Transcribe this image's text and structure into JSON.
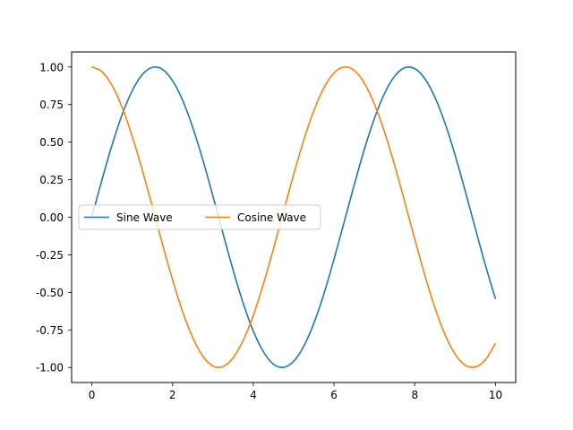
{
  "chart_data": {
    "type": "line",
    "title": "",
    "xlabel": "",
    "ylabel": "",
    "xlim": [
      -0.5,
      10.5
    ],
    "ylim": [
      -1.1,
      1.1
    ],
    "xticks": [
      0,
      2,
      4,
      6,
      8,
      10
    ],
    "xtick_labels": [
      "0",
      "2",
      "4",
      "6",
      "8",
      "10"
    ],
    "yticks": [
      1.0,
      0.75,
      0.5,
      0.25,
      0.0,
      -0.25,
      -0.5,
      -0.75,
      -1.0
    ],
    "ytick_labels": [
      "1.00",
      "0.75",
      "0.50",
      "0.25",
      "0.00",
      "-0.25",
      "-0.50",
      "-0.75",
      "-1.00"
    ],
    "grid": false,
    "legend": {
      "placement": "center-left",
      "columns": 2
    },
    "series": [
      {
        "name": "Sine Wave",
        "color": "#1f77b4",
        "x": [
          0.0,
          0.25,
          0.5,
          0.75,
          1.0,
          1.25,
          1.5,
          1.75,
          2.0,
          2.25,
          2.5,
          2.75,
          3.0,
          3.25,
          3.5,
          3.75,
          4.0,
          4.25,
          4.5,
          4.75,
          5.0,
          5.25,
          5.5,
          5.75,
          6.0,
          6.25,
          6.5,
          6.75,
          7.0,
          7.25,
          7.5,
          7.75,
          8.0,
          8.25,
          8.5,
          8.75,
          9.0,
          9.25,
          9.5,
          9.75,
          10.0
        ],
        "y": [
          0.0,
          0.247,
          0.479,
          0.682,
          0.841,
          0.949,
          0.997,
          0.984,
          0.909,
          0.778,
          0.598,
          0.382,
          0.141,
          -0.108,
          -0.351,
          -0.572,
          -0.757,
          -0.895,
          -0.978,
          -0.999,
          -0.959,
          -0.859,
          -0.706,
          -0.51,
          -0.279,
          -0.033,
          0.215,
          0.451,
          0.657,
          0.823,
          0.938,
          0.995,
          0.989,
          0.922,
          0.798,
          0.625,
          0.412,
          0.174,
          -0.075,
          -0.319,
          -0.544
        ]
      },
      {
        "name": "Cosine Wave",
        "color": "#ff7f0e",
        "x": [
          0.0,
          0.25,
          0.5,
          0.75,
          1.0,
          1.25,
          1.5,
          1.75,
          2.0,
          2.25,
          2.5,
          2.75,
          3.0,
          3.25,
          3.5,
          3.75,
          4.0,
          4.25,
          4.5,
          4.75,
          5.0,
          5.25,
          5.5,
          5.75,
          6.0,
          6.25,
          6.5,
          6.75,
          7.0,
          7.25,
          7.5,
          7.75,
          8.0,
          8.25,
          8.5,
          8.75,
          9.0,
          9.25,
          9.5,
          9.75,
          10.0
        ],
        "y": [
          1.0,
          0.969,
          0.878,
          0.732,
          0.54,
          0.315,
          0.071,
          -0.178,
          -0.416,
          -0.628,
          -0.801,
          -0.924,
          -0.99,
          -0.994,
          -0.936,
          -0.82,
          -0.654,
          -0.446,
          -0.211,
          0.037,
          0.284,
          0.512,
          0.709,
          0.861,
          0.96,
          0.999,
          0.977,
          0.893,
          0.754,
          0.568,
          0.347,
          0.104,
          -0.146,
          -0.386,
          -0.602,
          -0.781,
          -0.911,
          -0.985,
          -0.997,
          -0.948,
          -0.839
        ]
      }
    ]
  }
}
